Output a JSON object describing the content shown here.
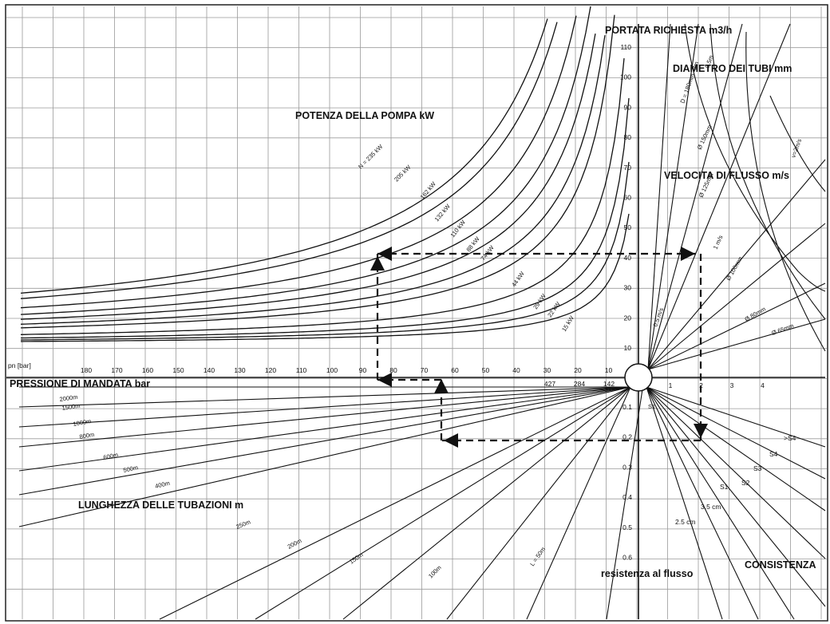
{
  "titles": {
    "flow_required": "PORTATA RICHIESTA m3/h",
    "pipe_diameter": "DIAMETRO DEI TUBI mm",
    "pump_power": "POTENZA DELLA POMPA kW",
    "flow_velocity": "VELOCITA DI FLUSSO m/s",
    "delivery_pressure": "PRESSIONE DI MANDATA bar",
    "pipe_length": "LUNGHEZZA DELLE TUBAZIONI m",
    "flow_resistance": "resistenza al flusso",
    "consistency": "CONSISTENZA",
    "pn_label": "pn [bar]"
  },
  "pressure_ticks": [
    "180",
    "170",
    "160",
    "150",
    "140",
    "130",
    "120",
    "110",
    "100",
    "90",
    "80",
    "70",
    "60",
    "50",
    "40",
    "30",
    "20",
    "10"
  ],
  "flow_ticks": [
    "10",
    "20",
    "30",
    "40",
    "50",
    "60",
    "70",
    "80",
    "90",
    "100",
    "110"
  ],
  "resistance_ticks": [
    "0.1",
    "0.2",
    "0.3",
    "0.4",
    "0.5",
    "0.6"
  ],
  "velocity_ticks": [
    "1",
    "2",
    "3",
    "4"
  ],
  "pipe_length_values": [
    "427",
    "284",
    "142"
  ],
  "power_labels": [
    "N = 235 kW",
    "205 kW",
    "162 kW",
    "132 kW",
    "110 kW",
    "88 kW",
    "74 kW",
    "44 kW",
    "29 kW",
    "22 kW",
    "15 kW"
  ],
  "length_labels": [
    "2000m",
    "1500m",
    "1000m",
    "800m",
    "600m",
    "500m",
    "400m",
    "250m",
    "200m",
    "150m",
    "100m",
    "L = 50m"
  ],
  "diameter_labels": [
    "D = 180mm",
    "Ø 150mm",
    "Ø 125mm",
    "Ø 100mm",
    "Ø 80mm",
    "Ø 65mm"
  ],
  "velocity_labels": [
    "v=2m/s",
    "1 m/s",
    "0.5 m/s"
  ],
  "consistency_labels": [
    "S1",
    "S2",
    "S3",
    "S4",
    ">S4",
    "3.5 cm",
    "2.5 cm"
  ],
  "misc_labels": [
    "S1",
    "3m",
    "9.5m"
  ]
}
